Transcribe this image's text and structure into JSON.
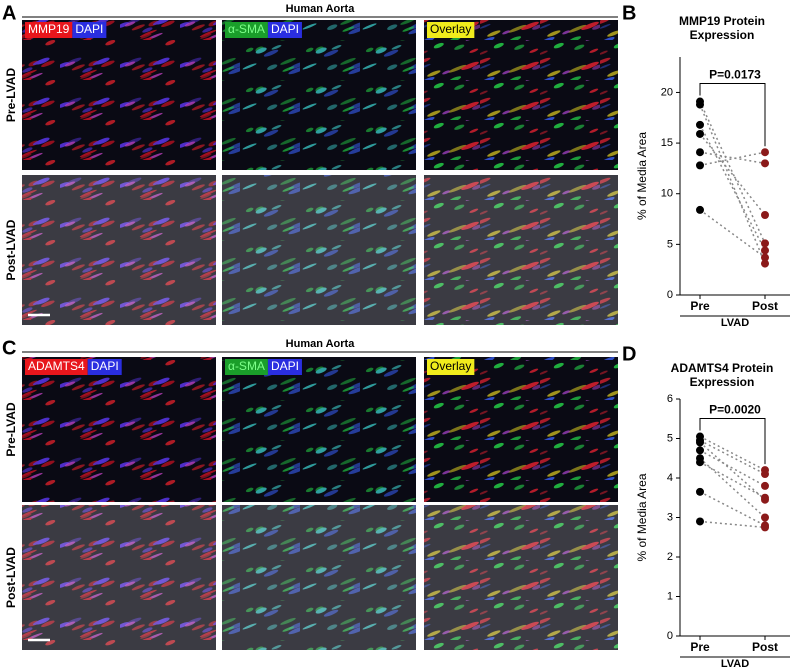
{
  "panels": [
    {
      "letter": "A",
      "header": "Human Aorta",
      "rows": [
        "Pre-LVAD",
        "Post-LVAD"
      ],
      "columns": [
        [
          "MMP19",
          "DAPI"
        ],
        [
          "α-SMA",
          "DAPI"
        ],
        [
          "Overlay"
        ]
      ]
    },
    {
      "letter": "C",
      "header": "Human Aorta",
      "rows": [
        "Pre-LVAD",
        "Post-LVAD"
      ],
      "columns": [
        [
          "ADAMTS4",
          "DAPI"
        ],
        [
          "α-SMA",
          "DAPI"
        ],
        [
          "Overlay"
        ]
      ]
    }
  ],
  "chart_data": [
    {
      "type": "paired_dot",
      "letter": "B",
      "title": [
        "MMP19 Protein",
        "Expression"
      ],
      "ylabel": "% of Media Area",
      "xlabel": "LVAD",
      "categories": [
        "Pre",
        "Post"
      ],
      "values": [
        [
          19.1,
          18.8,
          16.8,
          15.9,
          14.1,
          12.8,
          8.4
        ],
        [
          5.1,
          3.1,
          4.4,
          7.9,
          13.0,
          14.1,
          3.7
        ]
      ],
      "colors": [
        "#000000",
        "#8b1a1a"
      ],
      "annotation": "P=0.0173",
      "ylim": [
        0,
        23.5
      ],
      "yticks": [
        0,
        5,
        10,
        15,
        20
      ]
    },
    {
      "type": "paired_dot",
      "letter": "D",
      "title": [
        "ADAMTS4 Protein",
        "Expression"
      ],
      "ylabel": "% of Media Area",
      "xlabel": "LVAD",
      "categories": [
        "Pre",
        "Post"
      ],
      "values": [
        [
          5.05,
          4.95,
          4.9,
          4.7,
          4.5,
          4.4,
          3.65,
          2.9
        ],
        [
          4.2,
          4.1,
          3.45,
          3.8,
          3.0,
          3.5,
          2.8,
          2.75
        ]
      ],
      "colors": [
        "#000000",
        "#8b1a1a"
      ],
      "annotation": "P=0.0020",
      "ylim": [
        0,
        6
      ],
      "yticks": [
        0,
        1,
        2,
        3,
        4,
        5,
        6
      ]
    }
  ]
}
